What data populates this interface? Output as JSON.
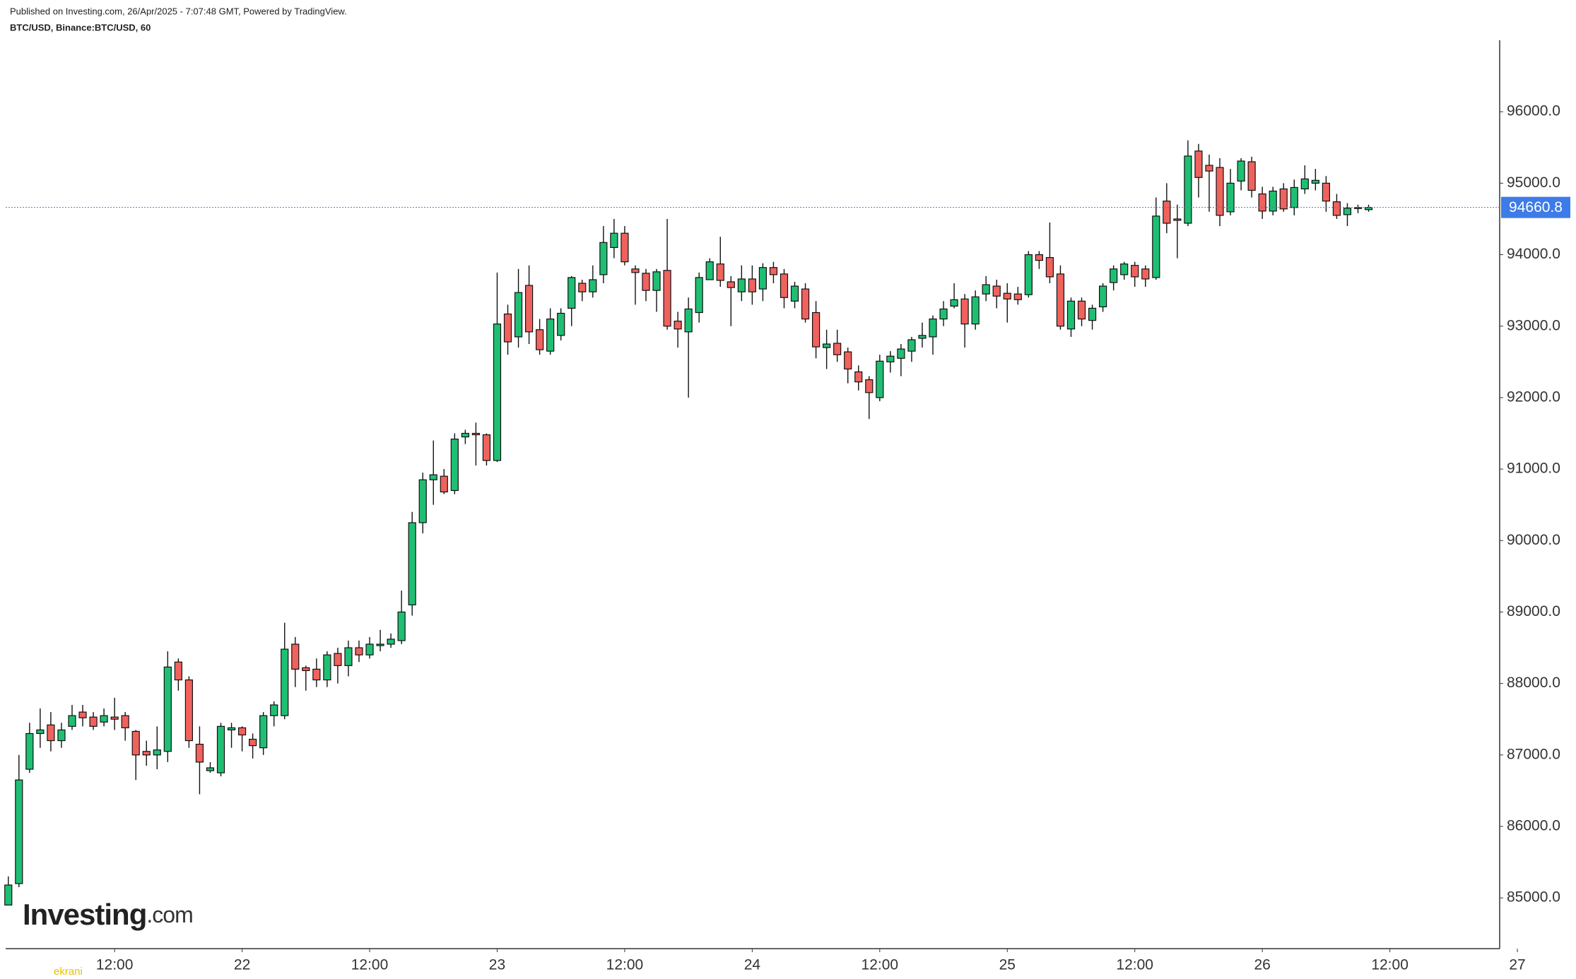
{
  "chart_data": {
    "type": "candlestick",
    "subtitle": "Published on Investing.com, 26/Apr/2025 - 7:07:48 GMT, Powered by TradingView.",
    "title": "BTC/USD, Binance:BTC/USD, 60",
    "logo": {
      "name": "Investing",
      "suffix": ".com"
    },
    "watermark": "ekrani",
    "up_color": "#1fbf73",
    "down_color": "#f0625d",
    "outline_color": "#111111",
    "last_price_color": "#3d7be8",
    "x": [
      "21 02:00",
      "21 03:00",
      "21 04:00",
      "21 05:00",
      "21 06:00",
      "21 07:00",
      "21 08:00",
      "21 09:00",
      "21 10:00",
      "21 11:00",
      "21 12:00",
      "21 13:00",
      "21 14:00",
      "21 15:00",
      "21 16:00",
      "21 17:00",
      "21 18:00",
      "21 19:00",
      "21 20:00",
      "21 21:00",
      "21 22:00",
      "21 23:00",
      "22 00:00",
      "22 01:00",
      "22 02:00",
      "22 03:00",
      "22 04:00",
      "22 05:00",
      "22 06:00",
      "22 07:00",
      "22 08:00",
      "22 09:00",
      "22 10:00",
      "22 11:00",
      "22 12:00",
      "22 13:00",
      "22 14:00",
      "22 15:00",
      "22 16:00",
      "22 17:00",
      "22 18:00",
      "22 19:00",
      "22 20:00",
      "22 21:00",
      "22 22:00",
      "22 23:00",
      "23 00:00",
      "23 01:00",
      "23 02:00",
      "23 03:00",
      "23 04:00",
      "23 05:00",
      "23 06:00",
      "23 07:00",
      "23 08:00",
      "23 09:00",
      "23 10:00",
      "23 11:00",
      "23 12:00",
      "23 13:00",
      "23 14:00",
      "23 15:00",
      "23 16:00",
      "23 17:00",
      "23 18:00",
      "23 19:00",
      "23 20:00",
      "23 21:00",
      "23 22:00",
      "23 23:00",
      "24 00:00",
      "24 01:00",
      "24 02:00",
      "24 03:00",
      "24 04:00",
      "24 05:00",
      "24 06:00",
      "24 07:00",
      "24 08:00",
      "24 09:00",
      "24 10:00",
      "24 11:00",
      "24 12:00",
      "24 13:00",
      "24 14:00",
      "24 15:00",
      "24 16:00",
      "24 17:00",
      "24 18:00",
      "24 19:00",
      "24 20:00",
      "24 21:00",
      "24 22:00",
      "24 23:00",
      "25 00:00",
      "25 01:00",
      "25 02:00",
      "25 03:00",
      "25 04:00",
      "25 05:00",
      "25 06:00",
      "25 07:00",
      "25 08:00",
      "25 09:00",
      "25 10:00",
      "25 11:00",
      "25 12:00",
      "25 13:00",
      "25 14:00",
      "25 15:00",
      "25 16:00",
      "25 17:00",
      "25 18:00",
      "25 19:00",
      "25 20:00",
      "25 21:00",
      "25 22:00",
      "25 23:00",
      "26 00:00",
      "26 01:00",
      "26 02:00",
      "26 03:00",
      "26 04:00",
      "26 05:00",
      "26 06:00",
      "26 07:00",
      "26 08:00",
      "26 09:00",
      "26 10:00"
    ],
    "open": [
      84900,
      85200,
      86800,
      87300,
      87420,
      87200,
      87400,
      87600,
      87530,
      87460,
      87530,
      87550,
      87330,
      87050,
      87000,
      87050,
      88300,
      88050,
      87150,
      86780,
      86750,
      87350,
      87380,
      87220,
      87100,
      87550,
      87550,
      88550,
      88220,
      88200,
      88050,
      88420,
      88250,
      88500,
      88400,
      88530,
      88550,
      88600,
      89100,
      90250,
      90850,
      90900,
      90700,
      91450,
      91500,
      91480,
      91120,
      93170,
      92850,
      93570,
      92950,
      92650,
      92870,
      93250,
      93600,
      93480,
      93720,
      94100,
      94300,
      93800,
      93740,
      93500,
      93780,
      93070,
      92920,
      93190,
      93650,
      93870,
      93620,
      93480,
      93660,
      93520,
      93820,
      93730,
      93350,
      93520,
      93190,
      92700,
      92760,
      92640,
      92360,
      92250,
      92000,
      92500,
      92550,
      92650,
      92830,
      92850,
      93100,
      93280,
      93380,
      93030,
      93450,
      93560,
      93460,
      93450,
      93440,
      94000,
      93960,
      93730,
      92960,
      93350,
      93080,
      93270,
      93610,
      93720,
      93850,
      93800,
      93680,
      94750,
      94500,
      94440,
      95450,
      95250,
      95220,
      94600,
      95030,
      95300,
      94850,
      94610,
      94920,
      94660,
      94920,
      95000,
      95000,
      94740,
      94560,
      94650,
      94630
    ],
    "high": [
      85300,
      87000,
      87450,
      87650,
      87600,
      87450,
      87700,
      87700,
      87600,
      87650,
      87800,
      87600,
      87350,
      87200,
      87400,
      88450,
      88350,
      88100,
      87400,
      86900,
      87450,
      87450,
      87400,
      87300,
      87600,
      87750,
      88850,
      88650,
      88250,
      88350,
      88450,
      88500,
      88600,
      88600,
      88650,
      88750,
      88700,
      89300,
      90400,
      90950,
      91400,
      91000,
      91500,
      91550,
      91650,
      91500,
      93750,
      93300,
      93800,
      93850,
      93100,
      93250,
      93250,
      93700,
      93650,
      93850,
      94400,
      94500,
      94400,
      93850,
      93800,
      93800,
      94500,
      93200,
      93400,
      93750,
      93950,
      94250,
      93700,
      93850,
      93850,
      93880,
      93900,
      93800,
      93620,
      93600,
      93350,
      92950,
      92950,
      92700,
      92450,
      92300,
      92600,
      92650,
      92750,
      92850,
      93050,
      93150,
      93350,
      93600,
      93450,
      93500,
      93700,
      93650,
      93600,
      93550,
      94050,
      94050,
      94450,
      93850,
      93400,
      93400,
      93300,
      93600,
      93850,
      93900,
      93900,
      93850,
      94800,
      95000,
      94700,
      95600,
      95550,
      95400,
      95350,
      95200,
      95350,
      95370,
      94950,
      94950,
      95000,
      95050,
      95250,
      95200,
      95100,
      94850,
      94720,
      94700,
      94700
    ],
    "low": [
      84900,
      85150,
      86750,
      87100,
      87050,
      87100,
      87350,
      87400,
      87350,
      87400,
      87350,
      87200,
      86650,
      86850,
      86800,
      86900,
      87900,
      87100,
      86450,
      86750,
      86700,
      87100,
      87050,
      86950,
      87000,
      87400,
      87500,
      87950,
      87900,
      87950,
      87950,
      88000,
      88100,
      88300,
      88350,
      88450,
      88500,
      88550,
      88950,
      90100,
      90500,
      90650,
      90650,
      91350,
      91050,
      91050,
      91100,
      92600,
      92700,
      92750,
      92600,
      92600,
      92800,
      93000,
      93350,
      93400,
      93600,
      93950,
      93850,
      93300,
      93350,
      93200,
      92950,
      92700,
      92000,
      93050,
      93650,
      93550,
      93000,
      93350,
      93300,
      93350,
      93600,
      93250,
      93250,
      93050,
      92550,
      92400,
      92500,
      92200,
      92100,
      91700,
      91950,
      92350,
      92300,
      92500,
      92700,
      92600,
      93000,
      93250,
      92700,
      92950,
      93350,
      93250,
      93050,
      93300,
      93400,
      93800,
      93600,
      92950,
      92850,
      93000,
      92950,
      93200,
      93500,
      93650,
      93550,
      93550,
      93650,
      94300,
      93950,
      94400,
      94800,
      94600,
      94400,
      94550,
      94900,
      94800,
      94500,
      94550,
      94600,
      94550,
      94850,
      94900,
      94600,
      94500,
      94400,
      94580,
      94600
    ],
    "close": [
      85180,
      86650,
      87300,
      87350,
      87200,
      87350,
      87550,
      87520,
      87400,
      87550,
      87500,
      87380,
      87000,
      87000,
      87070,
      88230,
      88050,
      87200,
      86900,
      86820,
      87400,
      87380,
      87280,
      87130,
      87550,
      87700,
      88480,
      88200,
      88180,
      88050,
      88400,
      88250,
      88500,
      88400,
      88550,
      88550,
      88620,
      89000,
      90250,
      90850,
      90920,
      90680,
      91420,
      91500,
      91480,
      91120,
      93030,
      92780,
      93470,
      92920,
      92670,
      93100,
      93180,
      93680,
      93480,
      93650,
      94170,
      94300,
      93900,
      93750,
      93500,
      93760,
      93000,
      92960,
      93240,
      93680,
      93900,
      93640,
      93540,
      93660,
      93480,
      93820,
      93720,
      93400,
      93560,
      93100,
      92710,
      92750,
      92600,
      92400,
      92220,
      92070,
      92510,
      92580,
      92680,
      92810,
      92870,
      93100,
      93240,
      93370,
      93030,
      93410,
      93580,
      93420,
      93380,
      93370,
      94000,
      93920,
      93690,
      93000,
      93350,
      93100,
      93250,
      93560,
      93800,
      93870,
      93690,
      93660,
      94540,
      94440,
      94480,
      95380,
      95080,
      95170,
      94550,
      95000,
      95310,
      94900,
      94610,
      94890,
      94640,
      94940,
      95060,
      95040,
      94750,
      94550,
      94650,
      94660,
      94660.8
    ],
    "xlim": [
      "21 01:45",
      "26 22:20"
    ],
    "xticks": [
      {
        "value": "21 12:00",
        "label": "12:00"
      },
      {
        "value": "22 00:00",
        "label": "22"
      },
      {
        "value": "22 12:00",
        "label": "12:00"
      },
      {
        "value": "23 00:00",
        "label": "23"
      },
      {
        "value": "23 12:00",
        "label": "12:00"
      },
      {
        "value": "24 00:00",
        "label": "24"
      },
      {
        "value": "24 12:00",
        "label": "12:00"
      },
      {
        "value": "25 00:00",
        "label": "25"
      },
      {
        "value": "25 12:00",
        "label": "12:00"
      },
      {
        "value": "26 00:00",
        "label": "26"
      },
      {
        "value": "26 12:00",
        "label": "12:00"
      },
      {
        "value": "27 00:00",
        "label": "27"
      }
    ],
    "ylim": [
      84290,
      97000
    ],
    "yticks": [
      {
        "value": 85000,
        "label": "85000.0"
      },
      {
        "value": 86000,
        "label": "86000.0"
      },
      {
        "value": 87000,
        "label": "87000.0"
      },
      {
        "value": 88000,
        "label": "88000.0"
      },
      {
        "value": 89000,
        "label": "89000.0"
      },
      {
        "value": 90000,
        "label": "90000.0"
      },
      {
        "value": 91000,
        "label": "91000.0"
      },
      {
        "value": 92000,
        "label": "92000.0"
      },
      {
        "value": 93000,
        "label": "93000.0"
      },
      {
        "value": 94000,
        "label": "94000.0"
      },
      {
        "value": 95000,
        "label": "95000.0"
      },
      {
        "value": 96000,
        "label": "96000.0"
      }
    ],
    "grid": false
  }
}
